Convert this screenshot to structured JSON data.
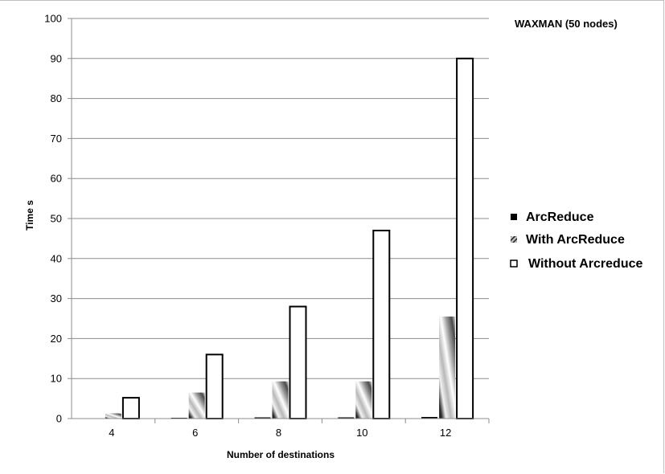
{
  "chart_data": {
    "type": "bar",
    "title": "WAXMAN (50 nodes)",
    "xlabel": "Number of destinations",
    "ylabel": "Time  s",
    "categories": [
      "4",
      "6",
      "8",
      "10",
      "12"
    ],
    "ylim": [
      0,
      100
    ],
    "yticks": [
      0,
      10,
      20,
      30,
      40,
      50,
      60,
      70,
      80,
      90,
      100
    ],
    "grid": true,
    "legend_position": "right",
    "series": [
      {
        "name": "ArcReduce",
        "values": [
          0.1,
          0.2,
          0.3,
          0.3,
          0.4
        ],
        "color": "#000000"
      },
      {
        "name": "With ArcReduce",
        "values": [
          1.3,
          6.5,
          9.3,
          9.3,
          25.5
        ],
        "color": "#a0a0a0"
      },
      {
        "name": "Without Arcreduce",
        "values": [
          5.2,
          16,
          28,
          47,
          90
        ],
        "color": "#ffffff"
      }
    ]
  }
}
